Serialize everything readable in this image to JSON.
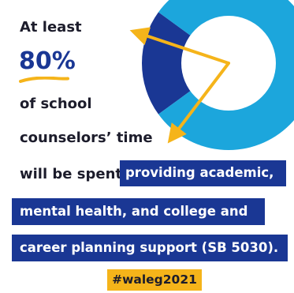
{
  "text": {
    "line1": "At least",
    "stat": "80%",
    "line2": "of school",
    "line3": "counselors’ time",
    "line4": "will be spent",
    "highlight1": "providing academic,",
    "highlight2": "mental health, and college and",
    "highlight3": "career planning support (SB 5030).",
    "hashtag": "#waleg2021"
  },
  "chart_data": {
    "type": "pie",
    "values": [
      80,
      20
    ],
    "highlighted_value": 80,
    "units": "%"
  },
  "colors": {
    "ring_light": "#1ca6dc",
    "ring_dark": "#1a3794",
    "arrow": "#f5b41a",
    "highlight_background": "#1a3794",
    "highlight_text": "#ffffff",
    "hashtag_background": "#f5b41a",
    "text": "#1c1c2b"
  }
}
